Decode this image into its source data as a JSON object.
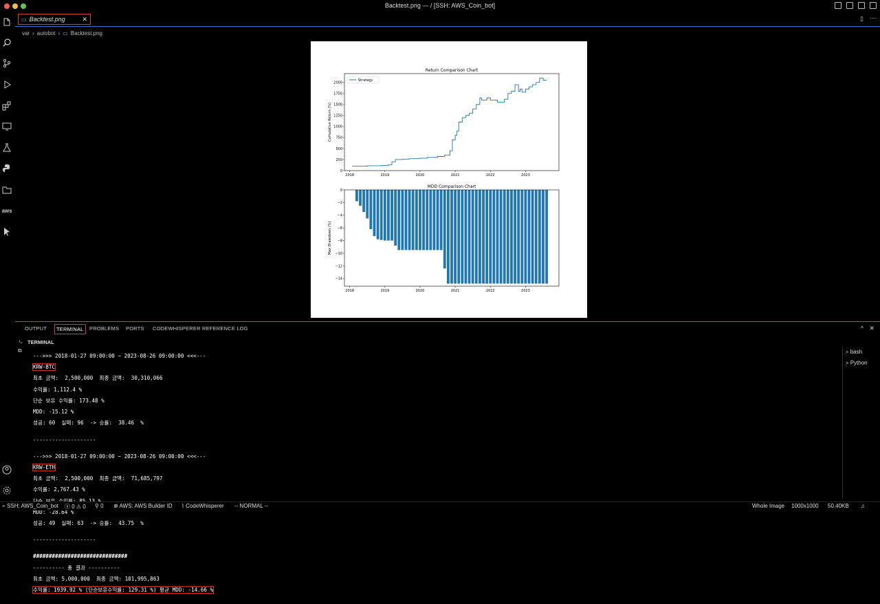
{
  "window": {
    "title": "Backtest.png — / [SSH: AWS_Coin_bot]",
    "traffic_colors": [
      "#ed5f57",
      "#f5bd4f",
      "#61c454"
    ]
  },
  "editor": {
    "tab_label": "Backtest.png",
    "breadcrumb": [
      "var",
      "autobot",
      "Backtest.png"
    ]
  },
  "activity_icons": [
    "files-icon",
    "search-icon",
    "source-control-icon",
    "run-debug-icon",
    "extensions-icon",
    "remote-explorer-icon",
    "testing-icon",
    "python-icon",
    "folder-icon",
    "aws-icon",
    "pointer-icon",
    "account-icon",
    "settings-icon"
  ],
  "chart_data": [
    {
      "type": "line",
      "title": "Return Comparison Chart",
      "xlabel": "",
      "ylabel": "Cumulative Return (%)",
      "legend": {
        "entries": [
          "Strategy"
        ],
        "placement": "top-left"
      },
      "xlim": [
        2017.85,
        2023.95
      ],
      "ylim": [
        0,
        2200
      ],
      "xticks": [
        "2018",
        "2019",
        "2020",
        "2021",
        "2022",
        "2023"
      ],
      "yticks": [
        "0",
        "250",
        "500",
        "750",
        "1000",
        "1250",
        "1500",
        "1750",
        "2000"
      ],
      "series": [
        {
          "name": "Strategy",
          "x": [
            2018.07,
            2018.5,
            2018.9,
            2019.1,
            2019.2,
            2019.3,
            2019.5,
            2019.7,
            2020.0,
            2020.2,
            2020.5,
            2020.7,
            2020.85,
            2020.92,
            2021.0,
            2021.05,
            2021.1,
            2021.2,
            2021.3,
            2021.4,
            2021.5,
            2021.6,
            2021.7,
            2021.75,
            2021.9,
            2022.0,
            2022.2,
            2022.4,
            2022.5,
            2022.6,
            2022.7,
            2022.8,
            2022.85,
            2022.9,
            2023.0,
            2023.1,
            2023.2,
            2023.3,
            2023.4,
            2023.5,
            2023.6
          ],
          "y": [
            100,
            110,
            115,
            130,
            200,
            250,
            260,
            270,
            280,
            300,
            320,
            350,
            450,
            700,
            800,
            900,
            1100,
            1200,
            1250,
            1300,
            1400,
            1500,
            1650,
            1600,
            1650,
            1600,
            1550,
            1620,
            1750,
            1800,
            1950,
            1800,
            1850,
            1780,
            1850,
            1900,
            1950,
            2000,
            2100,
            2050,
            2050
          ]
        }
      ]
    },
    {
      "type": "bar",
      "title": "MDD Comparison Chart",
      "xlabel": "",
      "ylabel": "Max Drawdown (%)",
      "xlim": [
        2017.85,
        2023.95
      ],
      "ylim": [
        -15.2,
        0
      ],
      "xticks": [
        "2018",
        "2019",
        "2020",
        "2021",
        "2022",
        "2023"
      ],
      "yticks": [
        "0",
        "−2",
        "−4",
        "−6",
        "−8",
        "−10",
        "−12",
        "−14"
      ],
      "series": [
        {
          "name": "",
          "x": [
            2018.2,
            2018.3,
            2018.4,
            2018.5,
            2018.6,
            2018.7,
            2018.8,
            2018.9,
            2019.0,
            2019.1,
            2019.2,
            2019.3,
            2019.4,
            2019.5,
            2019.6,
            2019.7,
            2019.8,
            2019.9,
            2020.0,
            2020.1,
            2020.2,
            2020.3,
            2020.4,
            2020.5,
            2020.6,
            2020.7,
            2020.8,
            2020.9,
            2021.0,
            2021.1,
            2021.2,
            2021.3,
            2021.4,
            2021.5,
            2021.6,
            2021.7,
            2021.8,
            2021.9,
            2022.0,
            2022.1,
            2022.2,
            2022.3,
            2022.4,
            2022.5,
            2022.6,
            2022.7,
            2022.8,
            2022.9,
            2023.0,
            2023.1,
            2023.2,
            2023.3,
            2023.4,
            2023.5,
            2023.6
          ],
          "y": [
            -1.8,
            -2.5,
            -3.5,
            -4.5,
            -6.2,
            -7.3,
            -7.8,
            -7.9,
            -8.0,
            -8.0,
            -8.0,
            -8.8,
            -9.5,
            -9.5,
            -9.5,
            -9.5,
            -9.5,
            -9.5,
            -9.5,
            -9.5,
            -9.5,
            -9.5,
            -9.5,
            -9.5,
            -9.5,
            -12.4,
            -14.8,
            -14.8,
            -14.8,
            -14.8,
            -14.8,
            -14.8,
            -14.8,
            -14.8,
            -14.8,
            -14.8,
            -14.8,
            -14.8,
            -14.8,
            -14.8,
            -14.8,
            -14.8,
            -14.8,
            -14.8,
            -14.8,
            -14.8,
            -14.8,
            -14.8,
            -14.8,
            -14.8,
            -14.8,
            -14.8,
            -14.8,
            -14.8,
            -14.8
          ]
        }
      ]
    }
  ],
  "panel": {
    "tabs": [
      "OUTPUT",
      "TERMINAL",
      "PROBLEMS",
      "PORTS",
      "CODEWHISPERER REFERENCE LOG"
    ],
    "terminal_heading": "TERMINAL",
    "terminals": [
      "bash",
      "Python"
    ],
    "lines": [
      "--->>> 2018-01-27 09:00:00 ~ 2023-08-26 09:00:00 <<<---",
      "KRW-BTC",
      "최초 금액:  2,500,000  최종 금액:  30,310,066",
      "수익률: 1,112.4 %",
      "단순 보유 수익률: 173.48 %",
      "MDD: -15.12 %",
      "성공: 60  실패: 96  -> 승률:  38.46  %",
      "",
      "--------------------",
      "",
      "--->>> 2018-01-27 09:00:00 ~ 2023-08-26 09:00:00 <<<---",
      "KRW-ETH",
      "최초 금액:  2,500,000  최종 금액:  71,685,797",
      "수익률: 2,767.43 %",
      "단순 보유 수익률: 85.13 %",
      "MDD: -28.64 %",
      "성공: 49  실패: 63  -> 승률:  43.75  %",
      "",
      "--------------------",
      "",
      "##############################",
      "---------- 총 결과 ----------",
      "최초 금액: 5,000,000  최종 금액: 101,995,863",
      "수익률: 1939.92 % (단순보유수익률: 129.31 %) 평균 MDD: -14.66 %"
    ]
  },
  "statusbar": {
    "remote": "SSH: AWS_Coin_bot",
    "errors": "0",
    "warnings": "0",
    "ports": "0",
    "aws": "AWS: AWS Builder ID",
    "codewhisperer": "CodeWhisperer",
    "mode": "-- NORMAL --",
    "zoom": "Whole Image",
    "dimensions": "1000x1000",
    "filesize": "50.40KB"
  }
}
